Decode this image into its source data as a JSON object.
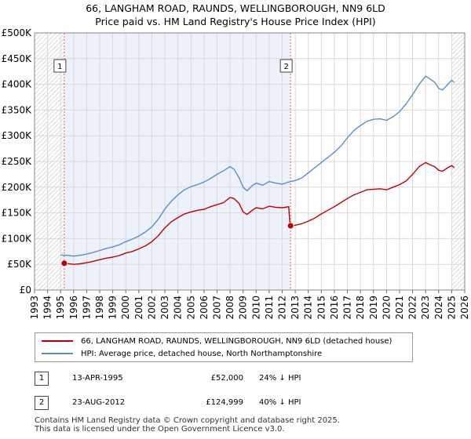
{
  "title_line1": "66, LANGHAM ROAD, RAUNDS, WELLINGBOROUGH, NN9 6LD",
  "title_line2": "Price paid vs. HM Land Registry's House Price Index (HPI)",
  "colors": {
    "price": "#c00000",
    "hpi": "#5b8ec9",
    "band": "#dde6f5",
    "sale_marker": "#c00000"
  },
  "chart_data": {
    "type": "line",
    "xlim": [
      1993,
      2026
    ],
    "ylim": [
      0,
      500000
    ],
    "x_ticks": [
      "1993",
      "1994",
      "1995",
      "1996",
      "1997",
      "1998",
      "1999",
      "2000",
      "2001",
      "2002",
      "2003",
      "2004",
      "2005",
      "2006",
      "2007",
      "2008",
      "2009",
      "2010",
      "2011",
      "2012",
      "2013",
      "2014",
      "2015",
      "2016",
      "2017",
      "2018",
      "2019",
      "2020",
      "2021",
      "2022",
      "2023",
      "2024",
      "2025",
      "2026"
    ],
    "y_ticks": [
      {
        "value": 0,
        "label": "£0"
      },
      {
        "value": 50000,
        "label": "£50K"
      },
      {
        "value": 100000,
        "label": "£100K"
      },
      {
        "value": 150000,
        "label": "£150K"
      },
      {
        "value": 200000,
        "label": "£200K"
      },
      {
        "value": 250000,
        "label": "£250K"
      },
      {
        "value": 300000,
        "label": "£300K"
      },
      {
        "value": 350000,
        "label": "£350K"
      },
      {
        "value": 400000,
        "label": "£400K"
      },
      {
        "value": 450000,
        "label": "£450K"
      },
      {
        "value": 500000,
        "label": "£500K"
      }
    ],
    "hatched_ranges": [
      [
        1993,
        1995.28
      ],
      [
        2025.0,
        2026
      ]
    ],
    "series": [
      {
        "name": "66, LANGHAM ROAD, RAUNDS, WELLINGBOROUGH, NN9 6LD (detached house)",
        "color": "#c00000",
        "points": [
          [
            1995.28,
            52000
          ],
          [
            1995.5,
            51500
          ],
          [
            1996,
            50000
          ],
          [
            1996.5,
            51000
          ],
          [
            1997,
            53000
          ],
          [
            1997.5,
            56000
          ],
          [
            1998,
            59000
          ],
          [
            1998.5,
            62000
          ],
          [
            1999,
            64000
          ],
          [
            1999.5,
            67000
          ],
          [
            2000,
            72000
          ],
          [
            2000.5,
            75000
          ],
          [
            2001,
            80000
          ],
          [
            2001.5,
            86000
          ],
          [
            2002,
            94000
          ],
          [
            2002.5,
            106000
          ],
          [
            2003,
            121000
          ],
          [
            2003.5,
            133000
          ],
          [
            2004,
            141000
          ],
          [
            2004.5,
            148000
          ],
          [
            2005,
            152000
          ],
          [
            2005.5,
            155000
          ],
          [
            2006,
            157000
          ],
          [
            2006.5,
            162000
          ],
          [
            2007,
            166000
          ],
          [
            2007.5,
            170000
          ],
          [
            2008,
            180000
          ],
          [
            2008.3,
            178000
          ],
          [
            2008.7,
            168000
          ],
          [
            2009,
            152000
          ],
          [
            2009.3,
            147000
          ],
          [
            2009.7,
            155000
          ],
          [
            2010,
            160000
          ],
          [
            2010.5,
            158000
          ],
          [
            2011,
            163000
          ],
          [
            2011.5,
            161000
          ],
          [
            2012,
            160000
          ],
          [
            2012.5,
            162000
          ],
          [
            2012.6,
            124999
          ],
          [
            2013,
            126000
          ],
          [
            2013.5,
            129000
          ],
          [
            2014,
            134000
          ],
          [
            2014.5,
            140000
          ],
          [
            2015,
            148000
          ],
          [
            2015.5,
            155000
          ],
          [
            2016,
            162000
          ],
          [
            2016.5,
            170000
          ],
          [
            2017,
            178000
          ],
          [
            2017.5,
            185000
          ],
          [
            2018,
            190000
          ],
          [
            2018.5,
            195000
          ],
          [
            2019,
            196000
          ],
          [
            2019.5,
            197000
          ],
          [
            2020,
            195000
          ],
          [
            2020.5,
            200000
          ],
          [
            2021,
            205000
          ],
          [
            2021.5,
            212000
          ],
          [
            2022,
            225000
          ],
          [
            2022.5,
            240000
          ],
          [
            2023,
            248000
          ],
          [
            2023.3,
            244000
          ],
          [
            2023.7,
            240000
          ],
          [
            2024,
            233000
          ],
          [
            2024.3,
            231000
          ],
          [
            2024.7,
            238000
          ],
          [
            2025,
            242000
          ],
          [
            2025.2,
            238000
          ]
        ]
      },
      {
        "name": "HPI: Average price, detached house, North Northamptonshire",
        "color": "#5b8ec9",
        "points": [
          [
            1995,
            68000
          ],
          [
            1995.5,
            67500
          ],
          [
            1996,
            66000
          ],
          [
            1996.5,
            67500
          ],
          [
            1997,
            70000
          ],
          [
            1997.5,
            73000
          ],
          [
            1998,
            77000
          ],
          [
            1998.5,
            81000
          ],
          [
            1999,
            84000
          ],
          [
            1999.5,
            88000
          ],
          [
            2000,
            94000
          ],
          [
            2000.5,
            99000
          ],
          [
            2001,
            105000
          ],
          [
            2001.5,
            113000
          ],
          [
            2002,
            123000
          ],
          [
            2002.5,
            138000
          ],
          [
            2003,
            158000
          ],
          [
            2003.5,
            173000
          ],
          [
            2004,
            185000
          ],
          [
            2004.5,
            195000
          ],
          [
            2005,
            201000
          ],
          [
            2005.5,
            205000
          ],
          [
            2006,
            210000
          ],
          [
            2006.5,
            217000
          ],
          [
            2007,
            225000
          ],
          [
            2007.5,
            232000
          ],
          [
            2008,
            240000
          ],
          [
            2008.3,
            235000
          ],
          [
            2008.7,
            218000
          ],
          [
            2009,
            200000
          ],
          [
            2009.3,
            193000
          ],
          [
            2009.7,
            203000
          ],
          [
            2010,
            208000
          ],
          [
            2010.5,
            204000
          ],
          [
            2011,
            211000
          ],
          [
            2011.5,
            208000
          ],
          [
            2012,
            206000
          ],
          [
            2012.5,
            210000
          ],
          [
            2013,
            213000
          ],
          [
            2013.5,
            218000
          ],
          [
            2014,
            228000
          ],
          [
            2014.5,
            238000
          ],
          [
            2015,
            248000
          ],
          [
            2015.5,
            258000
          ],
          [
            2016,
            268000
          ],
          [
            2016.5,
            280000
          ],
          [
            2017,
            296000
          ],
          [
            2017.5,
            310000
          ],
          [
            2018,
            320000
          ],
          [
            2018.5,
            328000
          ],
          [
            2019,
            332000
          ],
          [
            2019.5,
            333000
          ],
          [
            2020,
            330000
          ],
          [
            2020.5,
            337000
          ],
          [
            2021,
            347000
          ],
          [
            2021.5,
            362000
          ],
          [
            2022,
            380000
          ],
          [
            2022.5,
            400000
          ],
          [
            2023,
            416000
          ],
          [
            2023.3,
            411000
          ],
          [
            2023.7,
            404000
          ],
          [
            2024,
            392000
          ],
          [
            2024.3,
            389000
          ],
          [
            2024.7,
            400000
          ],
          [
            2025,
            408000
          ],
          [
            2025.2,
            404000
          ]
        ]
      }
    ],
    "sales": [
      {
        "label": "1",
        "x": 1995.28,
        "y": 52000
      },
      {
        "label": "2",
        "x": 2012.64,
        "y": 124999
      }
    ]
  },
  "legend": {
    "price_label": "66, LANGHAM ROAD, RAUNDS, WELLINGBOROUGH, NN9 6LD (detached house)",
    "hpi_label": "HPI: Average price, detached house, North Northamptonshire"
  },
  "transactions": [
    {
      "num": "1",
      "date": "13-APR-1995",
      "price": "£52,000",
      "hpi": "24% ↓ HPI"
    },
    {
      "num": "2",
      "date": "23-AUG-2012",
      "price": "£124,999",
      "hpi": "40% ↓ HPI"
    }
  ],
  "footer_line1": "Contains HM Land Registry data © Crown copyright and database right 2025.",
  "footer_line2": "This data is licensed under the Open Government Licence v3.0."
}
